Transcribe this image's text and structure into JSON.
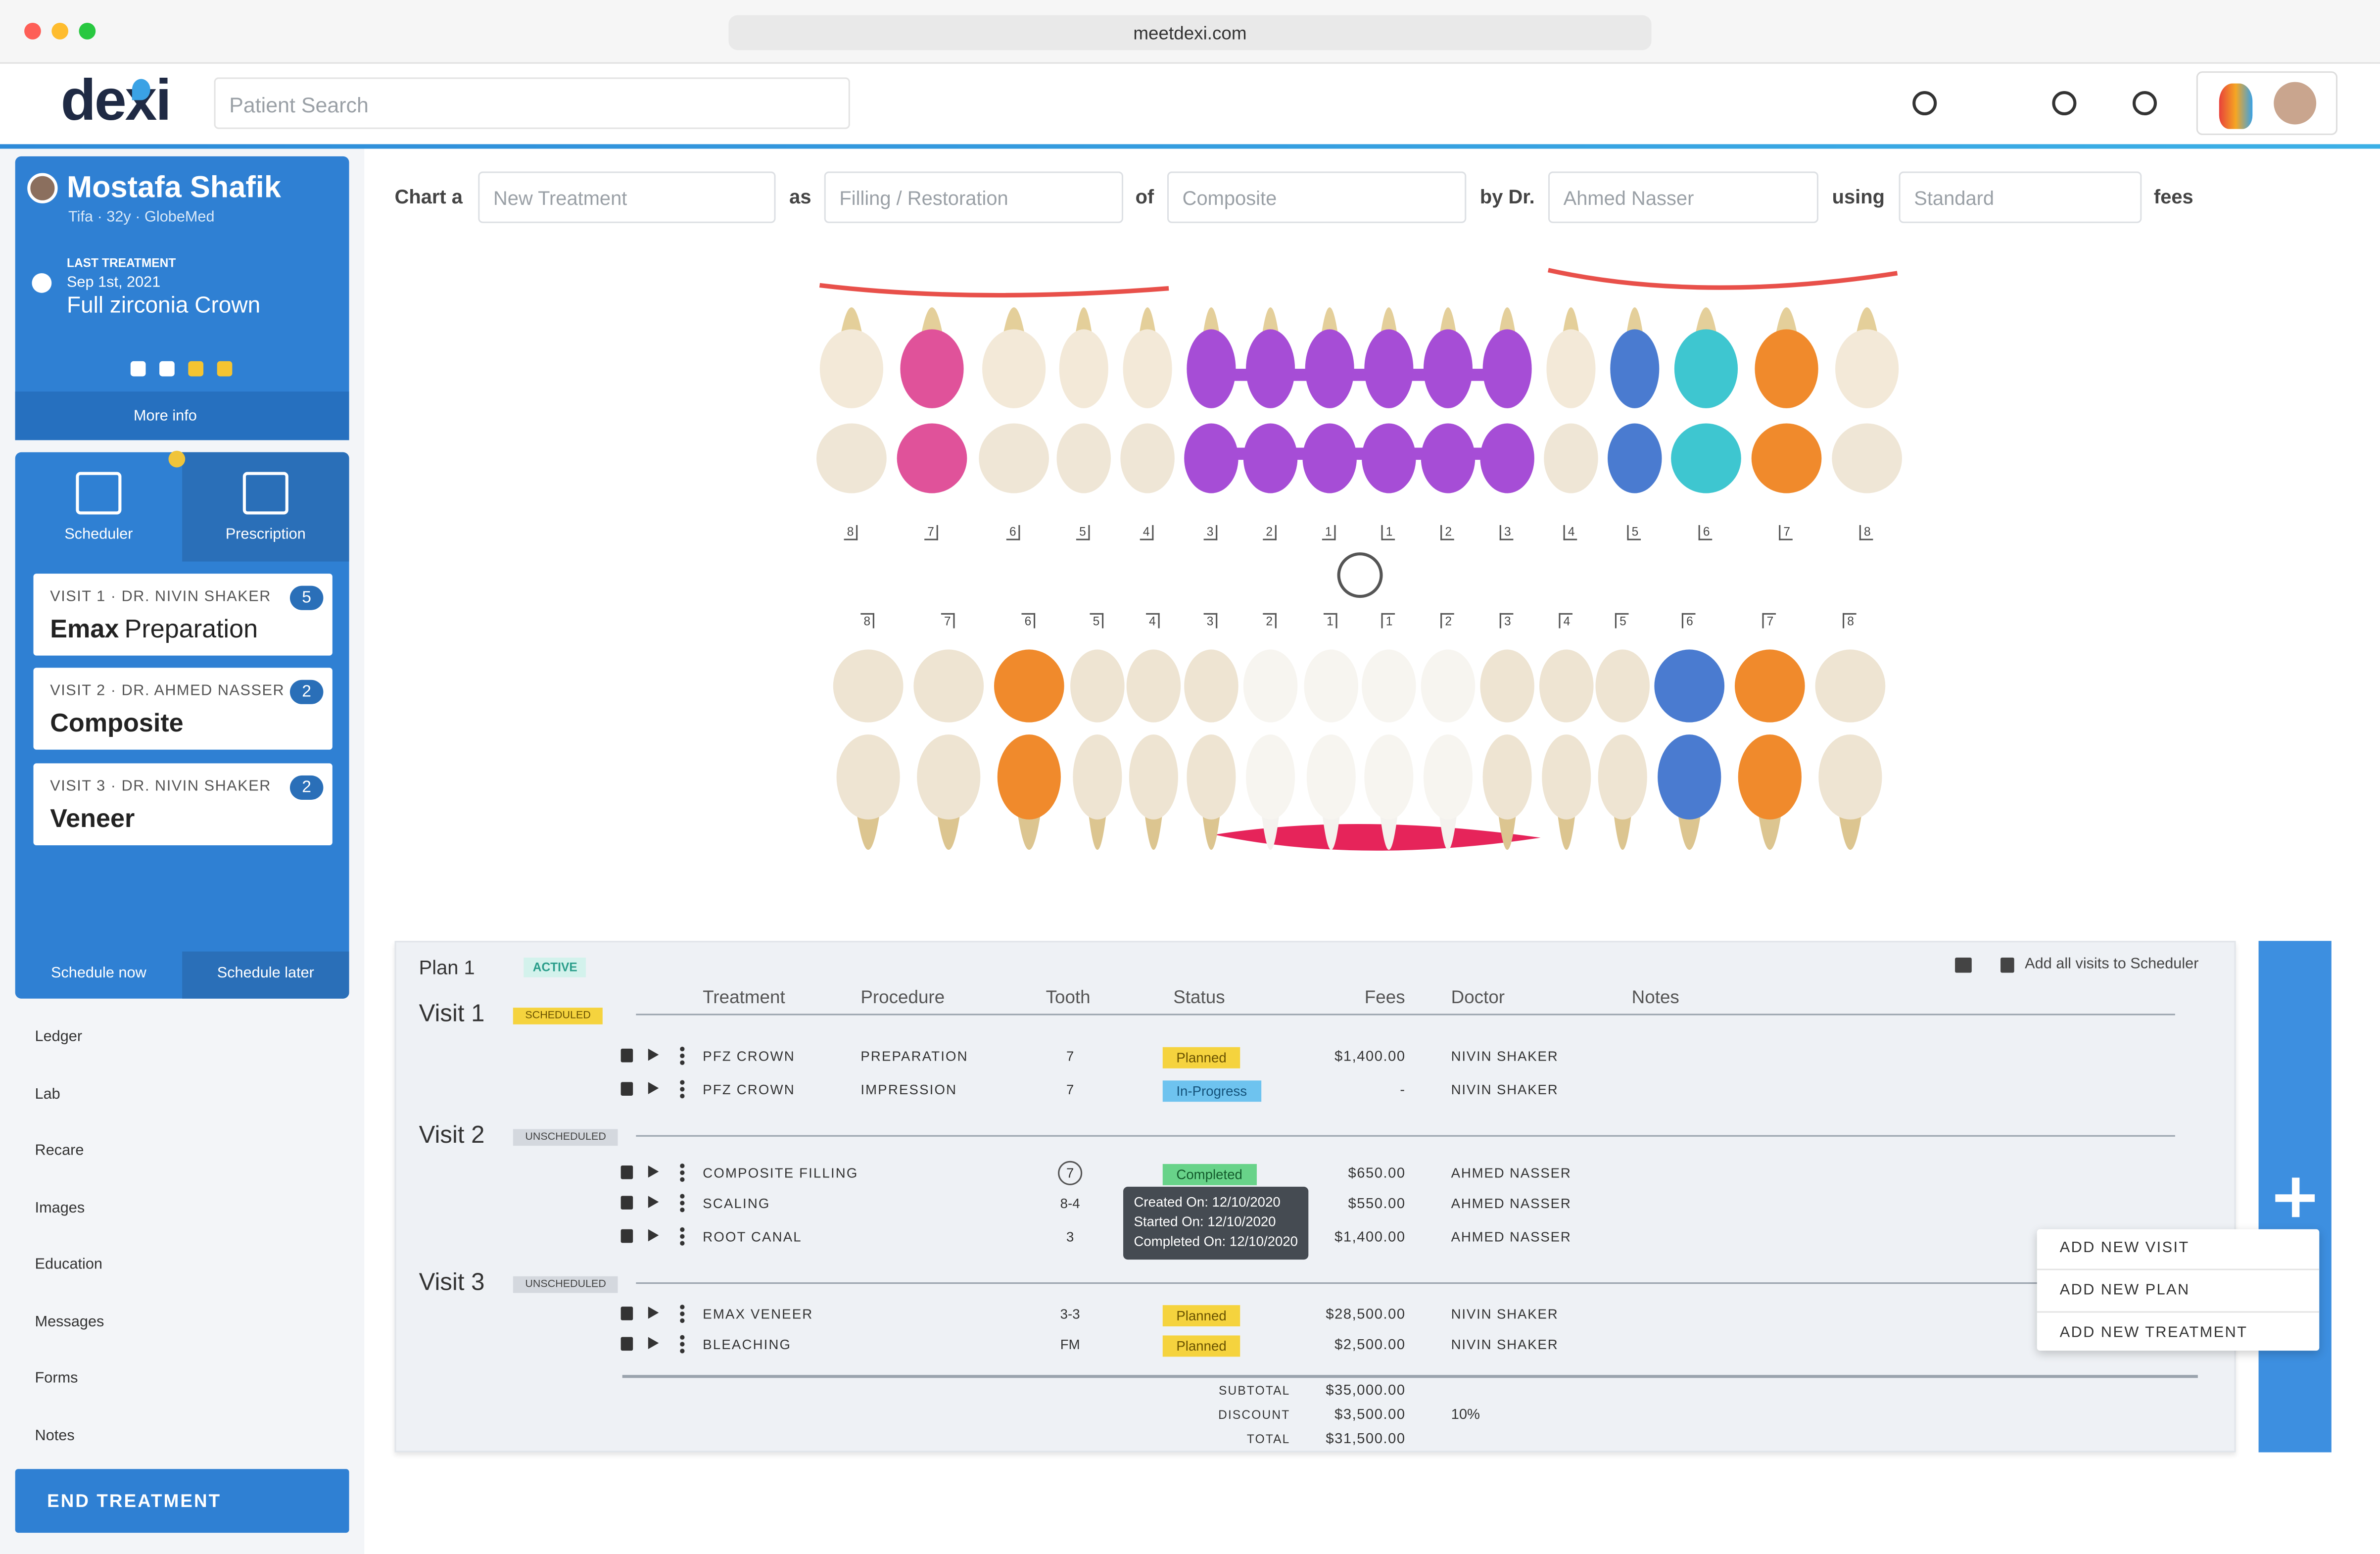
{
  "browser": {
    "url": "meetdexi.com"
  },
  "header": {
    "logo": "dexi",
    "search_placeholder": "Patient Search"
  },
  "patient": {
    "name": "Mostafa Shafik",
    "info": "Tifa · 32y · GlobeMed",
    "last_treatment_label": "LAST TREATMENT",
    "last_treatment_date": "Sep 1st, 2021",
    "last_treatment": "Full zirconia Crown",
    "more_info": "More info"
  },
  "tabs": [
    "Scheduler",
    "Prescription"
  ],
  "visit_cards": [
    {
      "label": "VISIT 1 · DR. NIVIN SHAKER",
      "count": "5",
      "title_bold": "Emax",
      "title_rest": "Preparation"
    },
    {
      "label": "VISIT 2 · DR. AHMED NASSER",
      "count": "2",
      "title_bold": "Composite"
    },
    {
      "label": "VISIT 3 · DR.  NIVIN SHAKER",
      "count": "2",
      "title_bold": "Veneer"
    }
  ],
  "schedule_buttons": [
    "Schedule now",
    "Schedule later"
  ],
  "nav": [
    "Ledger",
    "Lab",
    "Recare",
    "Images",
    "Education",
    "Messages",
    "Forms",
    "Notes"
  ],
  "end_treatment": "END TREATMENT",
  "chart_form": {
    "words": [
      "Chart a",
      "as",
      "of",
      "by Dr.",
      "using",
      "fees"
    ],
    "selects": [
      "New Treatment",
      "Filling / Restoration",
      "Composite",
      "Ahmed Nasser",
      "Standard"
    ]
  },
  "teeth": {
    "upper_numbers": [
      "8",
      "7",
      "6",
      "5",
      "4",
      "3",
      "2",
      "1",
      "1",
      "2",
      "3",
      "4",
      "5",
      "6",
      "7",
      "8"
    ],
    "lower_numbers": [
      "8",
      "7",
      "6",
      "5",
      "4",
      "3",
      "2",
      "1",
      "1",
      "2",
      "3",
      "4",
      "5",
      "6",
      "7",
      "8"
    ]
  },
  "plan": {
    "name": "Plan 1",
    "status": "ACTIVE",
    "add_all": "Add all visits to Scheduler",
    "columns": [
      "Treatment",
      "Procedure",
      "Tooth",
      "Status",
      "Fees",
      "Doctor",
      "Notes"
    ],
    "visits": [
      {
        "name": "Visit 1",
        "status": "SCHEDULED",
        "rows": [
          {
            "treatment": "PFZ CROWN",
            "procedure": "PREPARATION",
            "tooth": "7",
            "status": "Planned",
            "fees": "$1,400.00",
            "doctor": "NIVIN SHAKER"
          },
          {
            "treatment": "PFZ CROWN",
            "procedure": "IMPRESSION",
            "tooth": "7",
            "status": "In-Progress",
            "fees": "-",
            "doctor": "NIVIN SHAKER"
          }
        ]
      },
      {
        "name": "Visit 2",
        "status": "UNSCHEDULED",
        "rows": [
          {
            "treatment": "COMPOSITE FILLING",
            "tooth": "7",
            "status": "Completed",
            "fees": "$650.00",
            "doctor": "AHMED NASSER"
          },
          {
            "treatment": "SCALING",
            "tooth": "8-4",
            "fees": "$550.00",
            "doctor": "AHMED NASSER"
          },
          {
            "treatment": "ROOT CANAL",
            "tooth": "3",
            "fees": "$1,400.00",
            "doctor": "AHMED NASSER"
          }
        ]
      },
      {
        "name": "Visit 3",
        "status": "UNSCHEDULED",
        "rows": [
          {
            "treatment": "EMAX VENEER",
            "tooth": "3-3",
            "status": "Planned",
            "fees": "$28,500.00",
            "doctor": "NIVIN SHAKER"
          },
          {
            "treatment": "BLEACHING",
            "tooth": "FM",
            "status": "Planned",
            "fees": "$2,500.00",
            "doctor": "NIVIN SHAKER"
          }
        ]
      }
    ],
    "tooltip": [
      "Created On: 12/10/2020",
      "Started On: 12/10/2020",
      "Completed On: 12/10/2020"
    ],
    "totals": [
      {
        "label": "SUBTOTAL",
        "value": "$35,000.00"
      },
      {
        "label": "DISCOUNT",
        "value": "$3,500.00",
        "extra": "10%"
      },
      {
        "label": "TOTAL",
        "value": "$31,500.00"
      }
    ]
  },
  "menu": [
    "ADD NEW VISIT",
    "ADD NEW PLAN",
    "ADD NEW TREATMENT"
  ]
}
